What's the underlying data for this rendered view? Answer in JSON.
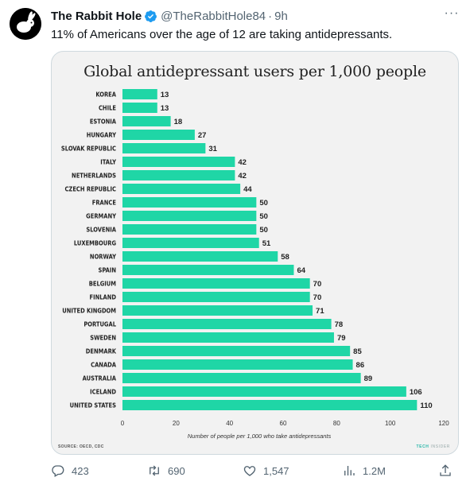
{
  "tweet": {
    "display_name": "The Rabbit Hole",
    "handle": "@TheRabbitHole84",
    "separator": "·",
    "time": "9h",
    "text": "11% of Americans over the age of 12 are taking antidepressants.",
    "more": "···"
  },
  "card": {
    "source": "SOURCE: OECD, CDC",
    "brand_bold": "TECH",
    "brand_light": " INSIDER"
  },
  "actions": {
    "replies": "423",
    "retweets": "690",
    "likes": "1,547",
    "views": "1.2M"
  },
  "colors": {
    "bar": "#1fd6a6",
    "verified": "#1d9bf0",
    "card_background": "#f2f2f2"
  },
  "chart_data": {
    "type": "bar",
    "orientation": "horizontal",
    "title": "Global antidepressant users per 1,000 people",
    "xlabel": "Number of people per 1,000 who take antidepressants",
    "ylabel": "",
    "xlim": [
      0,
      120
    ],
    "xticks": [
      0,
      20,
      40,
      60,
      80,
      100,
      120
    ],
    "grid": false,
    "categories": [
      "KOREA",
      "CHILE",
      "ESTONIA",
      "HUNGARY",
      "SLOVAK REPUBLIC",
      "ITALY",
      "NETHERLANDS",
      "CZECH REPUBLIC",
      "FRANCE",
      "GERMANY",
      "SLOVENIA",
      "LUXEMBOURG",
      "NORWAY",
      "SPAIN",
      "BELGIUM",
      "FINLAND",
      "UNITED KINGDOM",
      "PORTUGAL",
      "SWEDEN",
      "DENMARK",
      "CANADA",
      "AUSTRALIA",
      "ICELAND",
      "UNITED STATES"
    ],
    "values": [
      13,
      13,
      18,
      27,
      31,
      42,
      42,
      44,
      50,
      50,
      50,
      51,
      58,
      64,
      70,
      70,
      71,
      78,
      79,
      85,
      86,
      89,
      106,
      110
    ]
  }
}
